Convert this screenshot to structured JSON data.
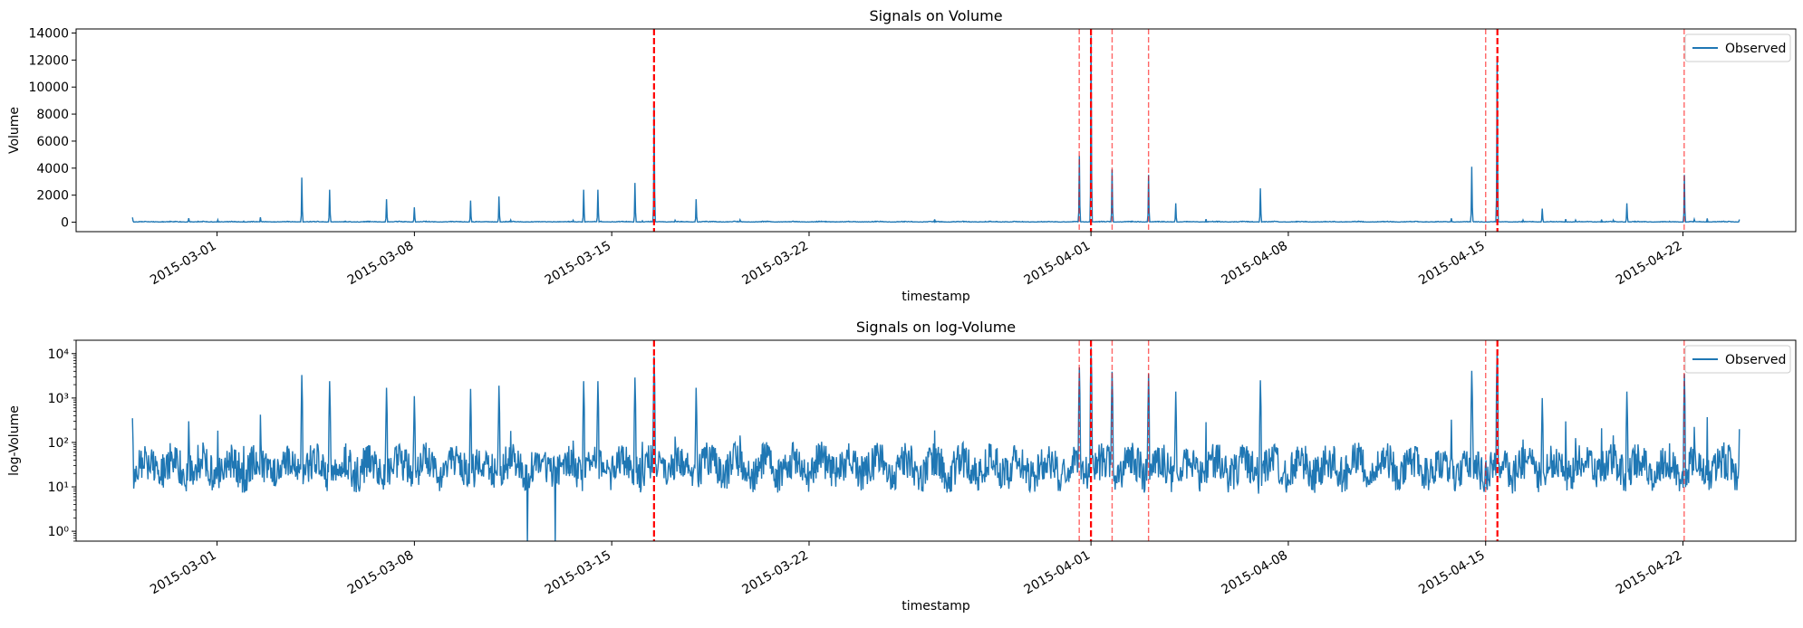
{
  "chart_data": [
    {
      "type": "line",
      "title": "Signals on Volume",
      "xlabel": "timestamp",
      "ylabel": "Volume",
      "yscale": "linear",
      "ylim": [
        -700,
        14300
      ],
      "xlim": [
        "2015-02-24",
        "2015-04-26"
      ],
      "yticks": [
        0,
        2000,
        4000,
        6000,
        8000,
        10000,
        12000,
        14000
      ],
      "ytick_labels": [
        "0",
        "2000",
        "4000",
        "6000",
        "8000",
        "10000",
        "12000",
        "14000"
      ],
      "xticks": [
        "2015-03-01",
        "2015-03-08",
        "2015-03-15",
        "2015-03-22",
        "2015-04-01",
        "2015-04-08",
        "2015-04-15",
        "2015-04-22"
      ],
      "legend": {
        "placement": "top-right",
        "entries": [
          "Observed"
        ]
      },
      "grid": false,
      "series": [
        {
          "name": "Observed",
          "color": "#1f77b4",
          "x": [
            "2015-02-26",
            "2015-02-28",
            "2015-03-04",
            "2015-03-05",
            "2015-03-07",
            "2015-03-08",
            "2015-03-10",
            "2015-03-11",
            "2015-03-14",
            "2015-03-14 12:00",
            "2015-03-15 20:00",
            "2015-03-16 12:00",
            "2015-03-18",
            "2015-03-31 14:00",
            "2015-04-01",
            "2015-04-01 18:00",
            "2015-04-03 01:00",
            "2015-04-04",
            "2015-04-07",
            "2015-04-14 12:00",
            "2015-04-15 10:00",
            "2015-04-17",
            "2015-04-20",
            "2015-04-22 01:00",
            "2015-04-24"
          ],
          "y": [
            350,
            300,
            3300,
            2400,
            1700,
            1100,
            1600,
            1900,
            2400,
            2400,
            2900,
            8600,
            1700,
            4900,
            13800,
            3900,
            3500,
            1400,
            2500,
            4100,
            12300,
            1000,
            1400,
            3500,
            200
          ]
        }
      ],
      "signals": {
        "color": "#ff0000",
        "strong": [
          "2015-03-16 12:00",
          "2015-04-01",
          "2015-04-15 10:00"
        ],
        "weak": [
          "2015-03-31 14:00",
          "2015-04-01 18:00",
          "2015-04-03 01:00",
          "2015-04-15 00:00",
          "2015-04-22 01:00"
        ]
      }
    },
    {
      "type": "line",
      "title": "Signals on log-Volume",
      "xlabel": "timestamp",
      "ylabel": "log-Volume",
      "yscale": "log",
      "ylim": [
        0.6,
        20000
      ],
      "xlim": [
        "2015-02-24",
        "2015-04-26"
      ],
      "yticks": [
        1,
        10,
        100,
        1000,
        10000
      ],
      "ytick_labels": [
        "10⁰",
        "10¹",
        "10²",
        "10³",
        "10⁴"
      ],
      "xticks": [
        "2015-03-01",
        "2015-03-08",
        "2015-03-15",
        "2015-03-22",
        "2015-04-01",
        "2015-04-08",
        "2015-04-15",
        "2015-04-22"
      ],
      "legend": {
        "placement": "top-right",
        "entries": [
          "Observed"
        ]
      },
      "grid": false,
      "series": [
        {
          "name": "Observed",
          "color": "#1f77b4",
          "x": [
            "2015-02-26",
            "2015-02-28",
            "2015-03-04",
            "2015-03-05",
            "2015-03-07",
            "2015-03-08",
            "2015-03-10",
            "2015-03-11",
            "2015-03-12",
            "2015-03-13",
            "2015-03-14",
            "2015-03-14 12:00",
            "2015-03-15 20:00",
            "2015-03-16 12:00",
            "2015-03-18",
            "2015-03-31 14:00",
            "2015-04-01",
            "2015-04-01 18:00",
            "2015-04-03 01:00",
            "2015-04-04",
            "2015-04-07",
            "2015-04-14 12:00",
            "2015-04-15 10:00",
            "2015-04-17",
            "2015-04-20",
            "2015-04-22 01:00",
            "2015-04-24"
          ],
          "y": [
            350,
            300,
            3300,
            2400,
            1700,
            1100,
            1600,
            1900,
            0.5,
            0.5,
            2400,
            2400,
            2900,
            8600,
            1700,
            4900,
            13800,
            3900,
            3500,
            1400,
            2500,
            4100,
            12300,
            1000,
            1400,
            3500,
            200
          ]
        }
      ],
      "signals": {
        "color": "#ff0000",
        "strong": [
          "2015-03-16 12:00",
          "2015-04-01",
          "2015-04-15 10:00"
        ],
        "weak": [
          "2015-03-31 14:00",
          "2015-04-01 18:00",
          "2015-04-03 01:00",
          "2015-04-15 00:00",
          "2015-04-22 01:00"
        ]
      }
    }
  ]
}
